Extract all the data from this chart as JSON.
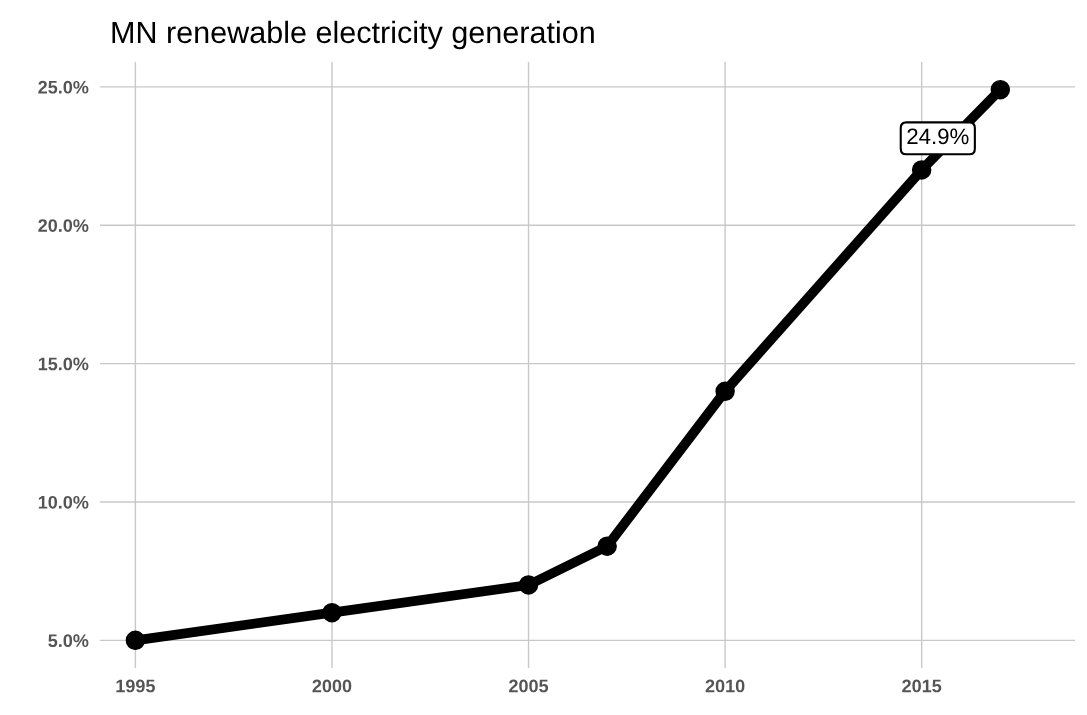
{
  "chart_data": {
    "type": "line",
    "title": "MN renewable electricity generation",
    "x": [
      1995,
      2000,
      2005,
      2007,
      2010,
      2015,
      2017
    ],
    "series": [
      {
        "color": "#000000",
        "values": [
          5.0,
          6.0,
          7.0,
          8.4,
          14.0,
          22.0,
          24.9
        ]
      }
    ],
    "xlim": [
      1994.1,
      2018.9
    ],
    "xticks": [
      1995,
      2000,
      2005,
      2010,
      2015
    ],
    "ylim": [
      4.0,
      25.9
    ],
    "yticks": [
      {
        "value": 5,
        "label": "5.0%"
      },
      {
        "value": 10,
        "label": "10.0%"
      },
      {
        "value": 15,
        "label": "15.0%"
      },
      {
        "value": 20,
        "label": "20.0%"
      },
      {
        "value": 25,
        "label": "25.0%"
      }
    ],
    "annotations": [
      {
        "text": "24.9%",
        "x": 2017,
        "y": 24.9
      }
    ],
    "grid": true,
    "marker": "circle",
    "line_style": "solid"
  }
}
